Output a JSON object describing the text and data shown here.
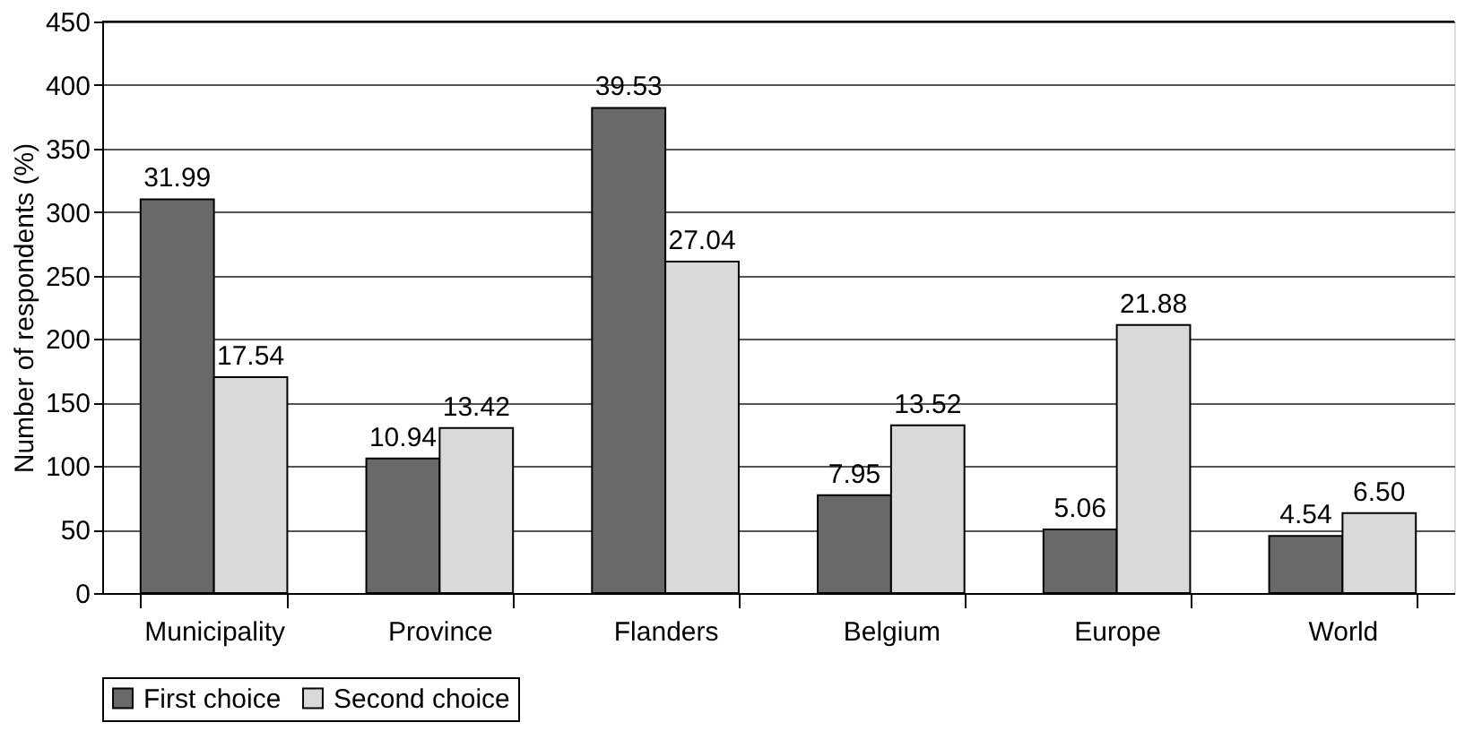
{
  "chart_data": {
    "type": "bar",
    "ylabel": "Number of respondents (%)",
    "categories": [
      "Municipality",
      "Province",
      "Flanders",
      "Belgium",
      "Europe",
      "World"
    ],
    "series": [
      {
        "name": "First choice",
        "color": "#696969",
        "values": [
          310,
          106,
          382,
          77,
          50,
          45
        ]
      },
      {
        "name": "Second choice",
        "color": "#d9d9d9",
        "values": [
          170,
          130,
          261,
          132,
          211,
          63
        ]
      }
    ],
    "annotations": [
      "31.99",
      "10.94",
      "39.53",
      "7.95",
      "5.06",
      "4.54",
      "17.54",
      "13.42",
      "27.04",
      "13.52",
      "21.88",
      "6.50"
    ],
    "ylim": [
      0,
      450
    ],
    "yticks": [
      0,
      50,
      100,
      150,
      200,
      250,
      300,
      350,
      400,
      450
    ],
    "grid": "y",
    "legend": "bottom"
  }
}
